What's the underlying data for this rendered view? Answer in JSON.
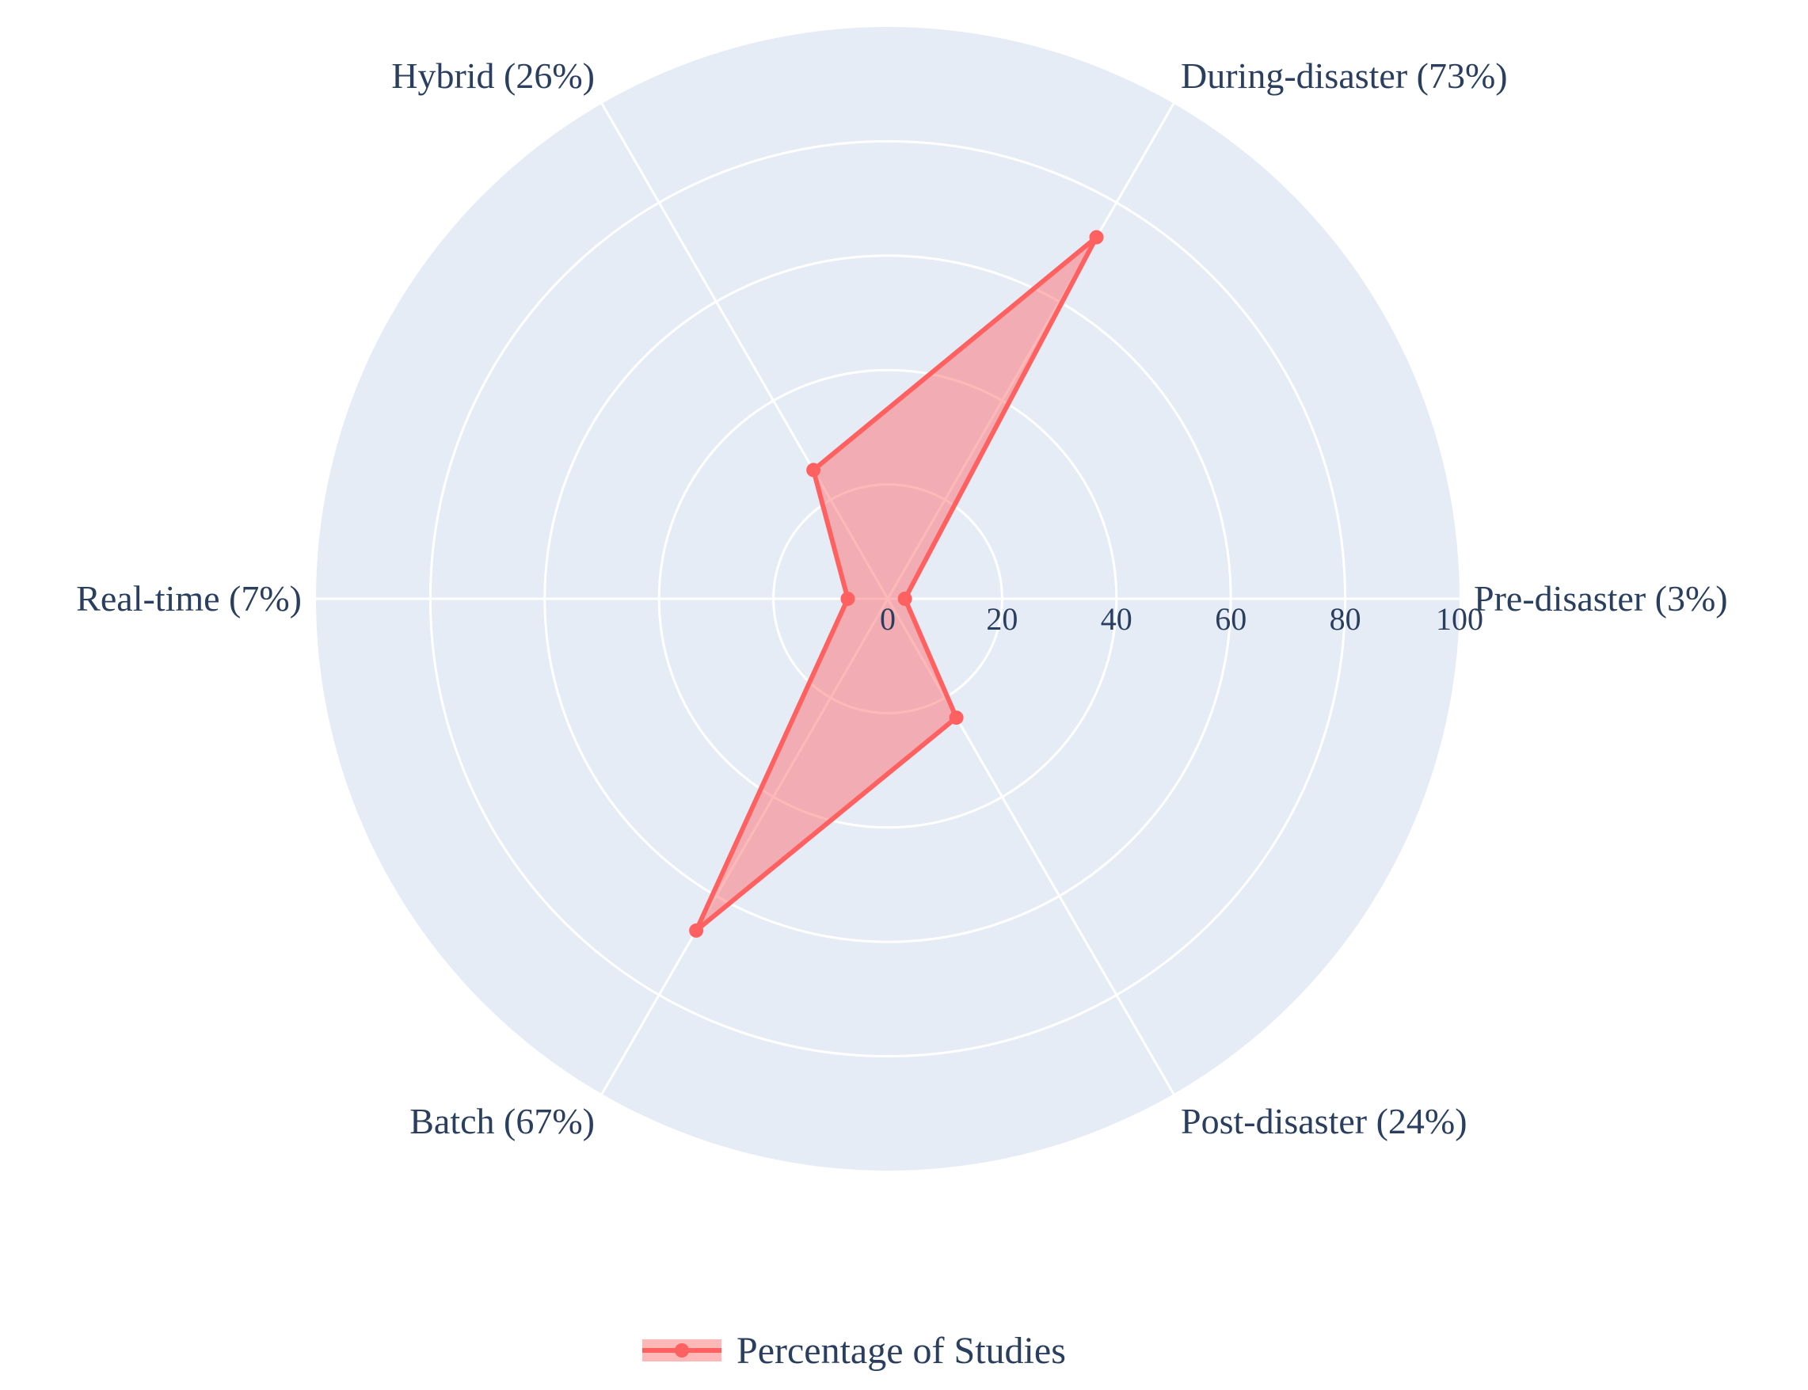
{
  "chart_data": {
    "type": "radar",
    "categories": [
      "Pre-disaster (3%)",
      "During-disaster (73%)",
      "Hybrid (26%)",
      "Real-time (7%)",
      "Batch (67%)",
      "Post-disaster (24%)"
    ],
    "series": [
      {
        "name": "Percentage of Studies",
        "values": [
          3,
          73,
          26,
          7,
          67,
          24
        ],
        "color": "#ff6161",
        "fill": "rgba(255,97,97,0.45)"
      }
    ],
    "radial_ticks": [
      "0",
      "20",
      "40",
      "60",
      "80",
      "100"
    ],
    "rlim": [
      0,
      100
    ],
    "angular_direction": "counterclockwise",
    "start_angle_deg": 0,
    "grid": true,
    "legend_position": "bottom-center",
    "colors": {
      "polar_bg": "#e5ecf6",
      "grid": "#ffffff",
      "text": "#2a3f5f"
    }
  }
}
